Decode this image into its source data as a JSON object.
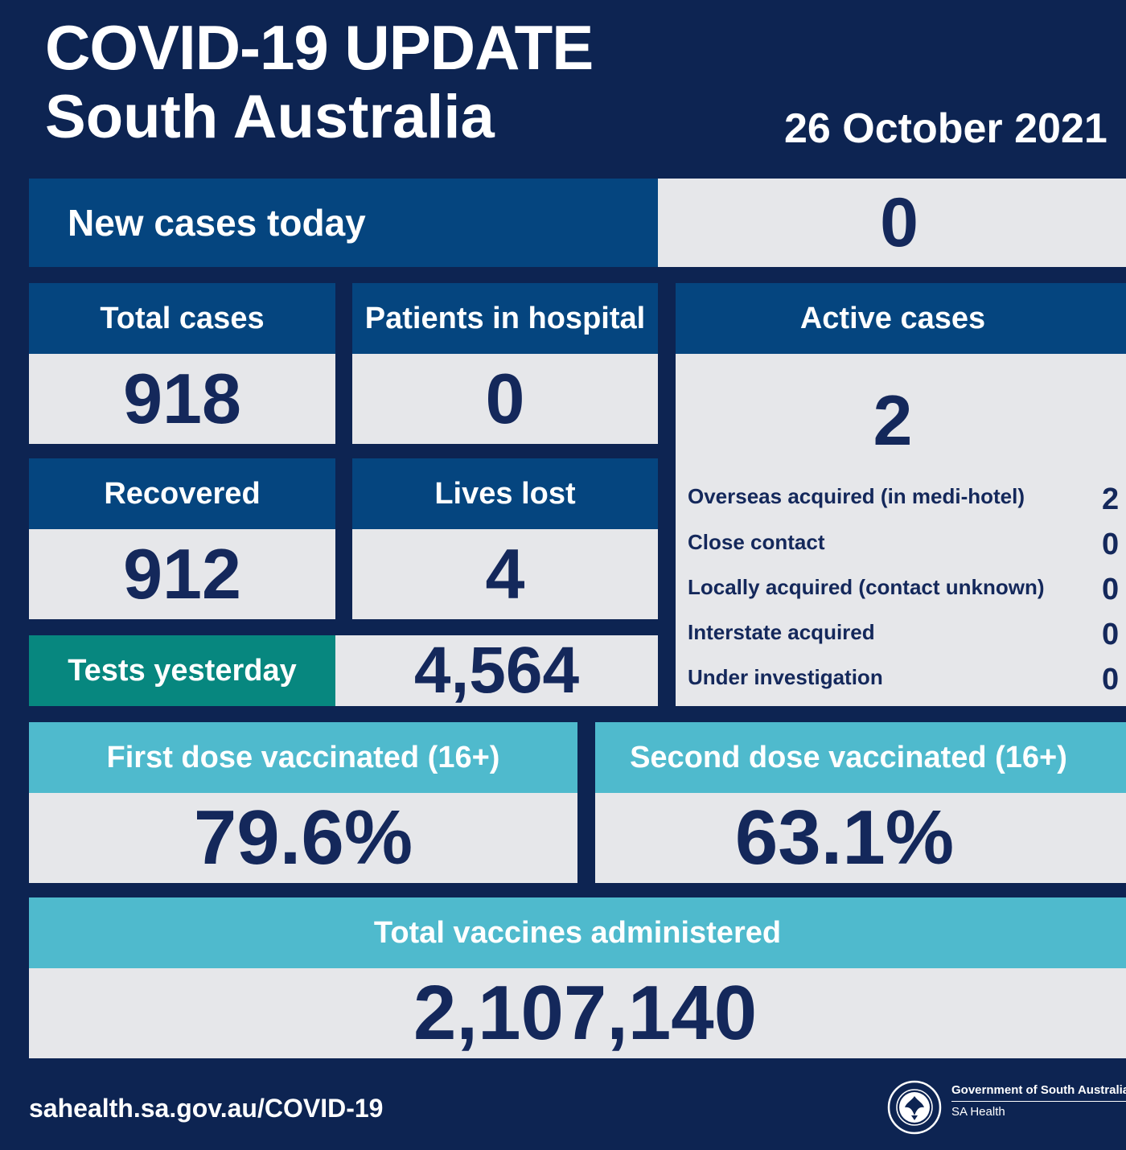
{
  "header": {
    "title_line1": "COVID-19 UPDATE",
    "title_line2": "South Australia",
    "date": "26 October 2021"
  },
  "new_cases": {
    "label": "New cases today",
    "value": "0"
  },
  "total_cases": {
    "label": "Total cases",
    "value": "918"
  },
  "patients_in_hospital": {
    "label": "Patients in hospital",
    "value": "0"
  },
  "recovered": {
    "label": "Recovered",
    "value": "912"
  },
  "lives_lost": {
    "label": "Lives lost",
    "value": "4"
  },
  "tests_yesterday": {
    "label": "Tests yesterday",
    "value": "4,564"
  },
  "active_cases": {
    "label": "Active cases",
    "value": "2",
    "breakdown": [
      {
        "label": "Overseas acquired (in medi-hotel)",
        "value": "2"
      },
      {
        "label": "Close contact",
        "value": "0"
      },
      {
        "label": "Locally acquired (contact unknown)",
        "value": "0"
      },
      {
        "label": "Interstate acquired",
        "value": "0"
      },
      {
        "label": "Under investigation",
        "value": "0"
      }
    ]
  },
  "first_dose": {
    "label": "First dose vaccinated (16+)",
    "value": "79.6%"
  },
  "second_dose": {
    "label": "Second dose vaccinated (16+)",
    "value": "63.1%"
  },
  "total_vaccines": {
    "label": "Total vaccines administered",
    "value": "2,107,140"
  },
  "footer": {
    "url": "sahealth.sa.gov.au/COVID-19",
    "gov_line1": "Government of South Australia",
    "gov_line2": "SA Health",
    "seal_text": "SOUTH AUSTRALIA",
    "seal_icon": "piping-shrike-seal-icon"
  },
  "colors": {
    "background": "#0d2452",
    "header_blue": "#05457f",
    "value_grey": "#e6e7ea",
    "value_text": "#14285b",
    "tests_teal": "#07877f",
    "vaccine_light_blue": "#4fbacd"
  }
}
